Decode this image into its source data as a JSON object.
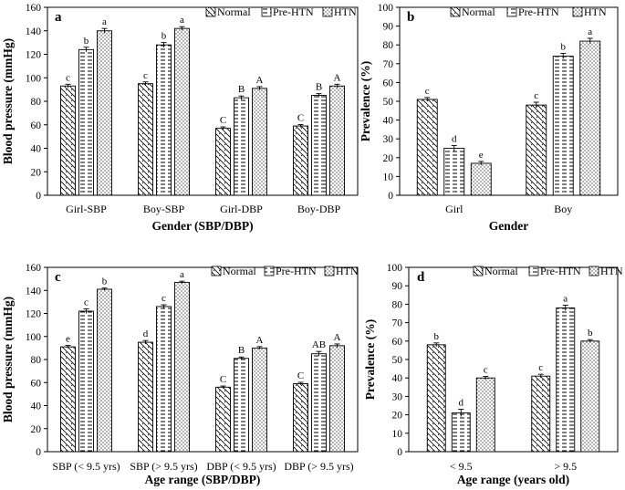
{
  "series_names": [
    "Normal",
    "Pre-HTN",
    "HTN"
  ],
  "chart_data": [
    {
      "panel": "a",
      "type": "bar",
      "ylabel": "Blood pressure (mmHg)",
      "xlabel": "Gender (SBP/DBP)",
      "ylim": [
        0,
        160
      ],
      "yticks": [
        "0",
        "20",
        "40",
        "60",
        "80",
        "100",
        "120",
        "140",
        "160"
      ],
      "categories": [
        "Girl-SBP",
        "Boy-SBP",
        "Girl-DBP",
        "Boy-DBP"
      ],
      "legend": [
        "Normal",
        "Pre-HTN",
        "HTN"
      ],
      "series": [
        {
          "name": "Normal",
          "values": [
            93,
            95,
            57,
            59
          ],
          "errors": [
            1.5,
            1.5,
            1.2,
            1.2
          ],
          "labels": [
            "c",
            "c",
            "C",
            "C"
          ]
        },
        {
          "name": "Pre-HTN",
          "values": [
            124,
            128,
            83,
            85
          ],
          "errors": [
            2,
            2,
            1.5,
            1.5
          ],
          "labels": [
            "b",
            "b",
            "B",
            "B"
          ]
        },
        {
          "name": "HTN",
          "values": [
            140,
            142,
            91,
            93
          ],
          "errors": [
            2,
            1.5,
            1.5,
            1.5
          ],
          "labels": [
            "a",
            "a",
            "A",
            "A"
          ]
        }
      ]
    },
    {
      "panel": "b",
      "type": "bar",
      "ylabel": "Prevalence (%)",
      "xlabel": "Gender",
      "ylim": [
        0,
        100
      ],
      "yticks": [
        "0",
        "10",
        "20",
        "30",
        "40",
        "50",
        "60",
        "70",
        "80",
        "90",
        "100"
      ],
      "categories": [
        "Girl",
        "Boy"
      ],
      "legend": [
        "Normal",
        "Pre-HTN",
        "HTN"
      ],
      "series": [
        {
          "name": "Normal",
          "values": [
            51,
            48
          ],
          "errors": [
            1,
            1.5
          ],
          "labels": [
            "c",
            "c"
          ]
        },
        {
          "name": "Pre-HTN",
          "values": [
            25,
            74
          ],
          "errors": [
            1.5,
            1.5
          ],
          "labels": [
            "d",
            "b"
          ]
        },
        {
          "name": "HTN",
          "values": [
            17,
            82
          ],
          "errors": [
            1,
            1.5
          ],
          "labels": [
            "e",
            "a"
          ]
        }
      ]
    },
    {
      "panel": "c",
      "type": "bar",
      "ylabel": "Blood pressure (mmHg)",
      "xlabel": "Age range (SBP/DBP)",
      "ylim": [
        0,
        160
      ],
      "yticks": [
        "0",
        "20",
        "40",
        "60",
        "80",
        "100",
        "120",
        "140",
        "160"
      ],
      "categories": [
        "SBP (< 9.5 yrs)",
        "SBP (> 9.5 yrs)",
        "DBP (< 9.5 yrs)",
        "DBP (> 9.5 yrs)"
      ],
      "legend": [
        "Normal",
        "Pre-HTN",
        "HTN"
      ],
      "series": [
        {
          "name": "Normal",
          "values": [
            91,
            95,
            56,
            59
          ],
          "errors": [
            1.2,
            1.5,
            1,
            1.2
          ],
          "labels": [
            "e",
            "d",
            "C",
            "C"
          ]
        },
        {
          "name": "Pre-HTN",
          "values": [
            122,
            126,
            81,
            85
          ],
          "errors": [
            2,
            1.5,
            1.2,
            2
          ],
          "labels": [
            "c",
            "c",
            "B",
            "AB"
          ]
        },
        {
          "name": "HTN",
          "values": [
            141,
            147,
            90,
            92
          ],
          "errors": [
            1,
            1,
            1.2,
            1.5
          ],
          "labels": [
            "b",
            "a",
            "A",
            "A"
          ]
        }
      ]
    },
    {
      "panel": "d",
      "type": "bar",
      "ylabel": "Prevalence (%)",
      "xlabel": "Age range (years old)",
      "ylim": [
        0,
        100
      ],
      "yticks": [
        "0",
        "10",
        "20",
        "30",
        "40",
        "50",
        "60",
        "70",
        "80",
        "90",
        "100"
      ],
      "categories": [
        "< 9.5",
        "> 9.5"
      ],
      "legend": [
        "Normal",
        "Pre-HTN",
        "HTN"
      ],
      "series": [
        {
          "name": "Normal",
          "values": [
            58,
            41
          ],
          "errors": [
            1,
            1
          ],
          "labels": [
            "b",
            "c"
          ]
        },
        {
          "name": "Pre-HTN",
          "values": [
            21,
            78
          ],
          "errors": [
            2,
            1.5
          ],
          "labels": [
            "d",
            "a"
          ]
        },
        {
          "name": "HTN",
          "values": [
            40,
            60
          ],
          "errors": [
            0.8,
            0.8
          ],
          "labels": [
            "c",
            "b"
          ]
        }
      ]
    }
  ]
}
